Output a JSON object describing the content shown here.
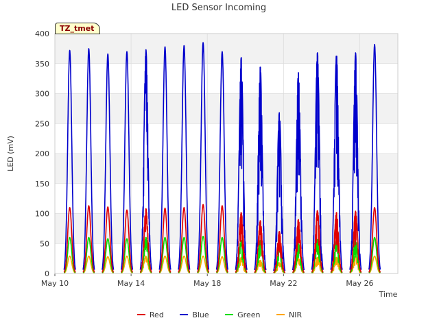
{
  "chart_data": {
    "type": "line",
    "title": "LED Sensor Incoming",
    "xlabel": "Time",
    "ylabel": "LED (mV)",
    "ylim": [
      0,
      400
    ],
    "yticks": [
      0,
      50,
      100,
      150,
      200,
      250,
      300,
      350,
      400
    ],
    "xlim_days": [
      0,
      18
    ],
    "xticks": [
      {
        "day": 0,
        "label": "May 10"
      },
      {
        "day": 4,
        "label": "May 14"
      },
      {
        "day": 8,
        "label": "May 18"
      },
      {
        "day": 12,
        "label": "May 22"
      },
      {
        "day": 16,
        "label": "May 26"
      }
    ],
    "grid": true,
    "legend_position": "bottom",
    "site_label": "TZ_tmet",
    "day_peaks": [
      {
        "day": "May 10",
        "center": 0.78,
        "Red": 110,
        "Blue": 372,
        "Green": 60,
        "NIR": 29
      },
      {
        "day": "May 11",
        "center": 1.78,
        "Red": 113,
        "Blue": 375,
        "Green": 60,
        "NIR": 29
      },
      {
        "day": "May 12",
        "center": 2.78,
        "Red": 111,
        "Blue": 366,
        "Green": 58,
        "NIR": 28
      },
      {
        "day": "May 13",
        "center": 3.78,
        "Red": 106,
        "Blue": 370,
        "Green": 58,
        "NIR": 29
      },
      {
        "day": "May 14",
        "center": 4.78,
        "Red": 108,
        "Blue": 373,
        "Green": 60,
        "NIR": 29
      },
      {
        "day": "May 15",
        "center": 5.78,
        "Red": 109,
        "Blue": 378,
        "Green": 60,
        "NIR": 29
      },
      {
        "day": "May 16",
        "center": 6.78,
        "Red": 110,
        "Blue": 380,
        "Green": 60,
        "NIR": 29
      },
      {
        "day": "May 17",
        "center": 7.78,
        "Red": 115,
        "Blue": 385,
        "Green": 62,
        "NIR": 29
      },
      {
        "day": "May 18",
        "center": 8.78,
        "Red": 113,
        "Blue": 370,
        "Green": 60,
        "NIR": 28
      },
      {
        "day": "May 19",
        "center": 9.78,
        "Red": 102,
        "Blue": 360,
        "Green": 55,
        "NIR": 27
      },
      {
        "day": "May 20",
        "center": 10.78,
        "Red": 88,
        "Blue": 345,
        "Green": 55,
        "NIR": 22
      },
      {
        "day": "May 21",
        "center": 11.78,
        "Red": 70,
        "Blue": 268,
        "Green": 40,
        "NIR": 18
      },
      {
        "day": "May 22",
        "center": 12.78,
        "Red": 90,
        "Blue": 335,
        "Green": 50,
        "NIR": 25
      },
      {
        "day": "May 23",
        "center": 13.78,
        "Red": 105,
        "Blue": 368,
        "Green": 57,
        "NIR": 27
      },
      {
        "day": "May 24",
        "center": 14.78,
        "Red": 102,
        "Blue": 367,
        "Green": 57,
        "NIR": 27
      },
      {
        "day": "May 25",
        "center": 15.78,
        "Red": 104,
        "Blue": 368,
        "Green": 58,
        "NIR": 28
      },
      {
        "day": "May 26",
        "center": 16.78,
        "Red": 110,
        "Blue": 382,
        "Green": 60,
        "NIR": 29
      }
    ],
    "series": [
      {
        "name": "Red",
        "color": "#e00000"
      },
      {
        "name": "Blue",
        "color": "#0000cc"
      },
      {
        "name": "Green",
        "color": "#00dd00"
      },
      {
        "name": "NIR",
        "color": "#ffa500"
      }
    ]
  }
}
